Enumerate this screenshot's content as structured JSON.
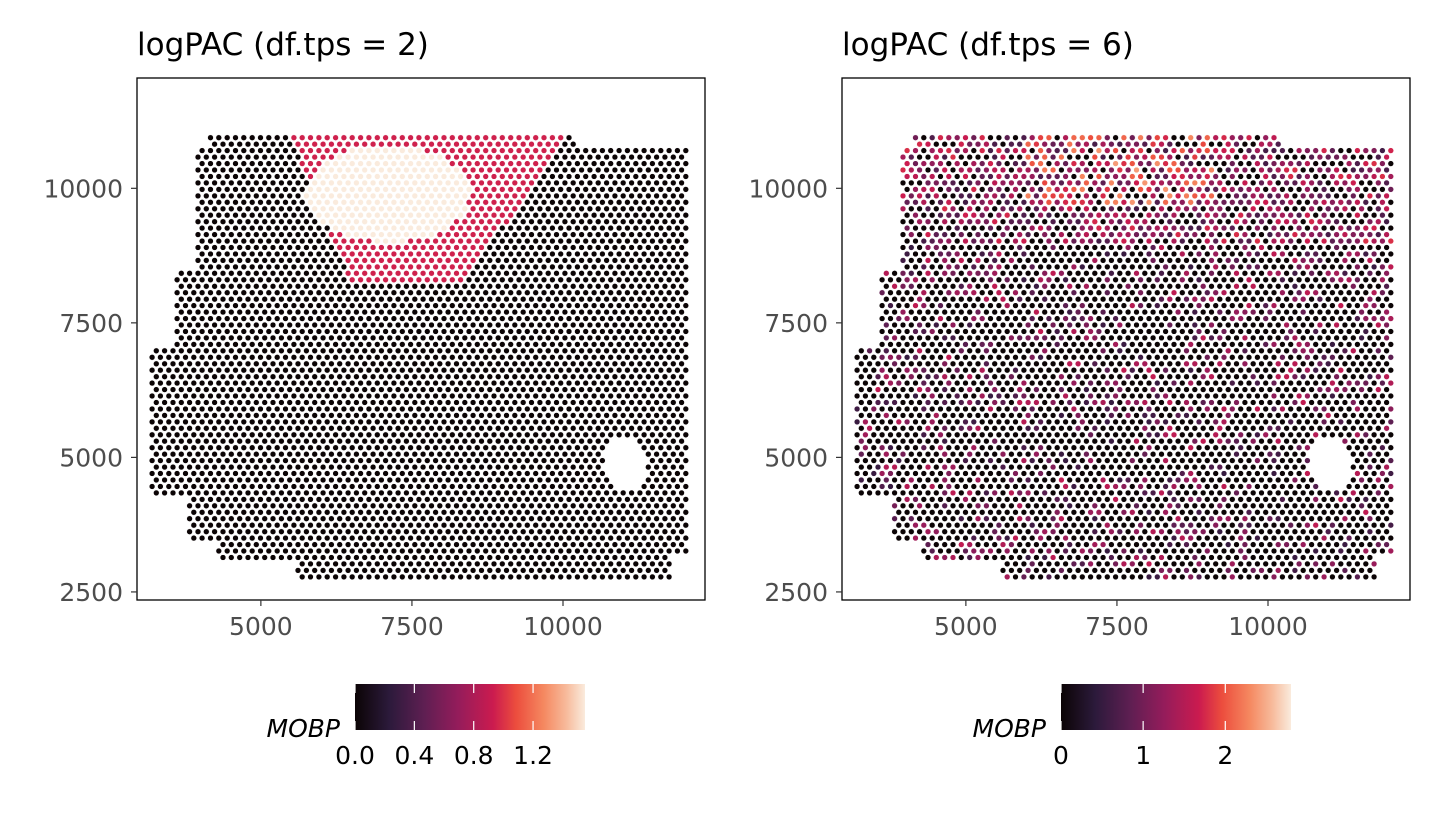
{
  "chart_data": [
    {
      "type": "scatter",
      "title": "logPAC (df.tps = 2)",
      "xlabel": "",
      "ylabel": "",
      "xlim": [
        2950,
        12350
      ],
      "ylim": [
        2350,
        12050
      ],
      "xticks": [
        5000,
        7500,
        10000
      ],
      "yticks": [
        2500,
        5000,
        7500,
        10000
      ],
      "xtick_labels": [
        "5000",
        "7500",
        "10000"
      ],
      "ytick_labels": [
        "2500",
        "5000",
        "7500",
        "10000"
      ],
      "grid": false,
      "legend": {
        "title": "MOBP",
        "placement": "bottom",
        "colorscale": "rocket",
        "range": [
          0,
          1.55
        ],
        "ticks": [
          0.0,
          0.4,
          0.8,
          1.2
        ],
        "tick_labels": [
          "0.0",
          "0.4",
          "0.8",
          "1.2"
        ]
      },
      "pattern": "smooth",
      "description_values": {
        "background_value": 0.0,
        "mid_region_value": 0.95,
        "peak_region_value": 1.55
      }
    },
    {
      "type": "scatter",
      "title": "logPAC (df.tps = 6)",
      "xlabel": "",
      "ylabel": "",
      "xlim": [
        2950,
        12350
      ],
      "ylim": [
        2350,
        12050
      ],
      "xticks": [
        5000,
        7500,
        10000
      ],
      "yticks": [
        2500,
        5000,
        7500,
        10000
      ],
      "xtick_labels": [
        "5000",
        "7500",
        "10000"
      ],
      "ytick_labels": [
        "2500",
        "5000",
        "7500",
        "10000"
      ],
      "grid": false,
      "legend": {
        "title": "MOBP",
        "placement": "bottom",
        "colorscale": "rocket",
        "range": [
          0,
          2.8
        ],
        "ticks": [
          0,
          1,
          2
        ],
        "tick_labels": [
          "0",
          "1",
          "2"
        ]
      },
      "pattern": "noisy",
      "description_values": {
        "background_value": 0.0,
        "mid_region_value": 1.0,
        "peak_region_value": 2.2
      }
    }
  ]
}
